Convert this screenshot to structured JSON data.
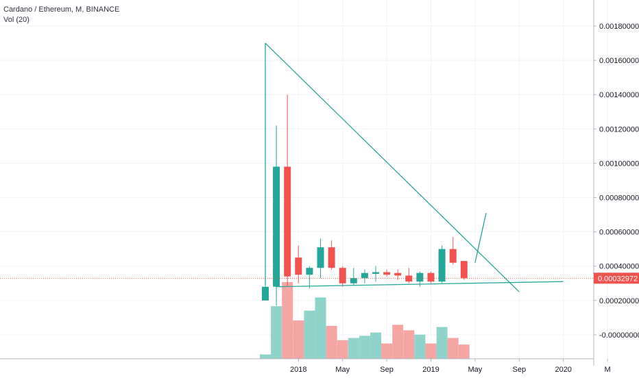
{
  "header": {
    "title": "Cardano / Ethereum, M, BINANCE",
    "indicator": "Vol (20)"
  },
  "price_scale": {
    "labels": [
      "0.00180000",
      "0.00160000",
      "0.00140000",
      "0.00120000",
      "0.00100000",
      "0.00080000",
      "0.00060000",
      "0.00040000",
      "0.00020000",
      "-0.00000000"
    ],
    "current_price_label": "0.00032972",
    "current_price_color": "#ef5350"
  },
  "time_scale": {
    "labels": [
      "2018",
      "May",
      "Sep",
      "2019",
      "May",
      "Sep",
      "2020",
      "M"
    ]
  },
  "colors": {
    "up": "#26a69a",
    "down": "#ef5350",
    "vol_up": "#8fd3cb",
    "vol_down": "#f4a6a4",
    "trendline": "#26a69a",
    "grid": "#f0f3fa",
    "axis_text": "#131722"
  },
  "chart_data": {
    "type": "candlestick",
    "title": "Cardano / Ethereum, M, BINANCE",
    "interval": "M",
    "exchange": "BINANCE",
    "ylim": [
      -0.00018,
      0.00188
    ],
    "candles": [
      {
        "date": "2017-10",
        "open": 0.0002,
        "high": 0.00034,
        "low": 0.0002,
        "close": 0.00028,
        "volume": 0.2
      },
      {
        "date": "2017-11",
        "open": 0.00028,
        "high": 0.00122,
        "low": 0.00017,
        "close": 0.00098,
        "volume": 2.4
      },
      {
        "date": "2017-12",
        "open": 0.00098,
        "high": 0.0014,
        "low": 0.00028,
        "close": 0.00034,
        "volume": 3.5
      },
      {
        "date": "2018-01",
        "open": 0.00045,
        "high": 0.00052,
        "low": 0.0003,
        "close": 0.00035,
        "volume": 1.75
      },
      {
        "date": "2018-02",
        "open": 0.00035,
        "high": 0.0004,
        "low": 0.00027,
        "close": 0.00039,
        "volume": 2.2
      },
      {
        "date": "2018-03",
        "open": 0.00039,
        "high": 0.00056,
        "low": 0.00033,
        "close": 0.00051,
        "volume": 2.8
      },
      {
        "date": "2018-04",
        "open": 0.00051,
        "high": 0.00055,
        "low": 0.00038,
        "close": 0.00039,
        "volume": 1.5
      },
      {
        "date": "2018-05",
        "open": 0.00039,
        "high": 0.0004,
        "low": 0.00028,
        "close": 0.0003,
        "volume": 0.85
      },
      {
        "date": "2018-06",
        "open": 0.0003,
        "high": 0.00039,
        "low": 0.00029,
        "close": 0.00033,
        "volume": 0.95
      },
      {
        "date": "2018-07",
        "open": 0.00033,
        "high": 0.00038,
        "low": 0.0003,
        "close": 0.00036,
        "volume": 1.05
      },
      {
        "date": "2018-08",
        "open": 0.000355,
        "high": 0.0004,
        "low": 0.00031,
        "close": 0.000365,
        "volume": 1.2
      },
      {
        "date": "2018-09",
        "open": 0.000365,
        "high": 0.00038,
        "low": 0.00034,
        "close": 0.00035,
        "volume": 0.7
      },
      {
        "date": "2018-10",
        "open": 0.00036,
        "high": 0.00038,
        "low": 0.00032,
        "close": 0.000345,
        "volume": 1.55
      },
      {
        "date": "2018-11",
        "open": 0.000345,
        "high": 0.00039,
        "low": 0.0003,
        "close": 0.00031,
        "volume": 1.3
      },
      {
        "date": "2018-12",
        "open": 0.00031,
        "high": 0.00037,
        "low": 0.00028,
        "close": 0.00036,
        "volume": 1.1
      },
      {
        "date": "2019-01",
        "open": 0.00036,
        "high": 0.00037,
        "low": 0.0003,
        "close": 0.00031,
        "volume": 0.7
      },
      {
        "date": "2019-02",
        "open": 0.00031,
        "high": 0.00052,
        "low": 0.0003,
        "close": 0.0005,
        "volume": 1.45
      },
      {
        "date": "2019-03",
        "open": 0.0005,
        "high": 0.00057,
        "low": 0.00041,
        "close": 0.00042,
        "volume": 0.95
      },
      {
        "date": "2019-04",
        "open": 0.00043,
        "high": 0.00043,
        "low": 0.00032,
        "close": 0.00033,
        "volume": 0.65
      }
    ],
    "trendlines": [
      {
        "from": {
          "date": "2017-10",
          "price": 0.00029
        },
        "to": {
          "date": "2017-10",
          "price": 0.0017
        }
      },
      {
        "from": {
          "date": "2017-10",
          "price": 0.0017
        },
        "to": {
          "date": "2019-09",
          "price": 0.00025
        }
      },
      {
        "from": {
          "date": "2017-11",
          "price": 0.00028
        },
        "to": {
          "date": "2020-01",
          "price": 0.00031
        }
      },
      {
        "from": {
          "date": "2019-05",
          "price": 0.00042
        },
        "to": {
          "date": "2019-06",
          "price": 0.00071
        }
      }
    ],
    "current_price": 0.00032972,
    "volume_unit": "relative"
  }
}
